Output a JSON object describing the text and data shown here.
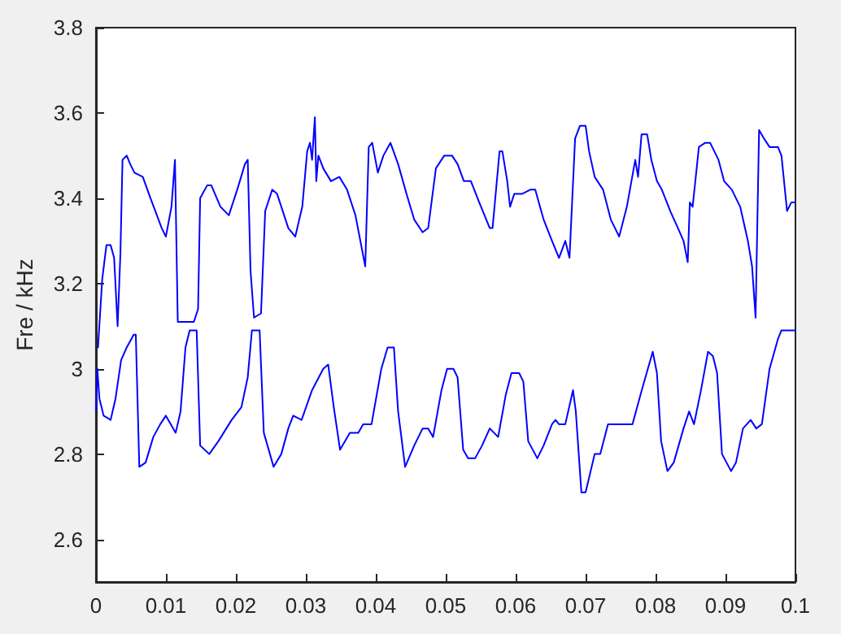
{
  "chart_data": {
    "type": "line",
    "ylabel": "Fre / kHz",
    "xlim": [
      0,
      0.1
    ],
    "xticks": [
      0,
      0.01,
      0.02,
      0.03,
      0.04,
      0.05,
      0.06,
      0.07,
      0.08,
      0.09,
      0.1
    ],
    "ylim": [
      2.5,
      3.8
    ],
    "yticks": [
      2.6,
      2.8,
      3,
      3.2,
      3.4,
      3.6,
      3.8
    ],
    "grid": false,
    "marker": "none",
    "line_style": "solid",
    "series": [
      {
        "color": "#0000ff",
        "x": [
          0.0003,
          0.0009,
          0.0015,
          0.0021,
          0.0026,
          0.0031,
          0.0035,
          0.0038,
          0.0044,
          0.0049,
          0.0055,
          0.0067,
          0.0078,
          0.0094,
          0.01,
          0.0108,
          0.0113,
          0.0117,
          0.014,
          0.0146,
          0.0149,
          0.0159,
          0.0165,
          0.0178,
          0.019,
          0.0202,
          0.0213,
          0.0217,
          0.0221,
          0.0226,
          0.0236,
          0.0242,
          0.0252,
          0.0259,
          0.0275,
          0.0285,
          0.0295,
          0.0302,
          0.0306,
          0.0309,
          0.0313,
          0.0315,
          0.0318,
          0.0325,
          0.0336,
          0.0348,
          0.0359,
          0.0371,
          0.0385,
          0.039,
          0.0395,
          0.0403,
          0.0411,
          0.0421,
          0.0432,
          0.0444,
          0.0455,
          0.0467,
          0.0475,
          0.0486,
          0.0498,
          0.0509,
          0.0517,
          0.0526,
          0.0536,
          0.0548,
          0.0563,
          0.0567,
          0.0577,
          0.0581,
          0.0588,
          0.0592,
          0.0598,
          0.0609,
          0.0621,
          0.0628,
          0.064,
          0.0652,
          0.0662,
          0.0671,
          0.0677,
          0.0685,
          0.0692,
          0.07,
          0.0705,
          0.0713,
          0.0725,
          0.0736,
          0.0748,
          0.0759,
          0.0771,
          0.0775,
          0.078,
          0.0788,
          0.0794,
          0.0802,
          0.0809,
          0.0821,
          0.0832,
          0.084,
          0.0846,
          0.0849,
          0.0853,
          0.0862,
          0.0871,
          0.0878,
          0.089,
          0.0898,
          0.0909,
          0.0921,
          0.0932,
          0.0938,
          0.0943,
          0.0948,
          0.0955,
          0.0963,
          0.0975,
          0.098,
          0.0988,
          0.0994,
          0.1
        ],
        "values": [
          3.05,
          3.21,
          3.29,
          3.29,
          3.26,
          3.1,
          3.27,
          3.49,
          3.5,
          3.48,
          3.46,
          3.45,
          3.4,
          3.33,
          3.31,
          3.38,
          3.49,
          3.11,
          3.11,
          3.14,
          3.4,
          3.43,
          3.43,
          3.38,
          3.36,
          3.42,
          3.48,
          3.49,
          3.23,
          3.12,
          3.13,
          3.37,
          3.42,
          3.41,
          3.33,
          3.31,
          3.38,
          3.51,
          3.53,
          3.49,
          3.59,
          3.44,
          3.5,
          3.47,
          3.44,
          3.45,
          3.42,
          3.36,
          3.24,
          3.52,
          3.53,
          3.46,
          3.5,
          3.53,
          3.48,
          3.41,
          3.35,
          3.32,
          3.33,
          3.47,
          3.5,
          3.5,
          3.48,
          3.44,
          3.44,
          3.39,
          3.33,
          3.33,
          3.51,
          3.51,
          3.44,
          3.38,
          3.41,
          3.41,
          3.42,
          3.42,
          3.35,
          3.3,
          3.26,
          3.3,
          3.26,
          3.54,
          3.57,
          3.57,
          3.51,
          3.45,
          3.42,
          3.35,
          3.31,
          3.38,
          3.49,
          3.45,
          3.55,
          3.55,
          3.49,
          3.44,
          3.42,
          3.37,
          3.33,
          3.3,
          3.25,
          3.39,
          3.38,
          3.52,
          3.53,
          3.53,
          3.49,
          3.44,
          3.42,
          3.38,
          3.3,
          3.24,
          3.12,
          3.56,
          3.54,
          3.52,
          3.52,
          3.5,
          3.37,
          3.39,
          3.39
        ]
      },
      {
        "color": "#0000ff",
        "x": [
          0,
          0.0002,
          0.0005,
          0.0011,
          0.0021,
          0.0028,
          0.0036,
          0.0044,
          0.0054,
          0.0057,
          0.0062,
          0.0071,
          0.0082,
          0.0092,
          0.01,
          0.0114,
          0.0121,
          0.0128,
          0.0134,
          0.0144,
          0.0149,
          0.0162,
          0.0175,
          0.0194,
          0.0208,
          0.0217,
          0.0223,
          0.0234,
          0.024,
          0.0254,
          0.0265,
          0.0275,
          0.0282,
          0.0294,
          0.0309,
          0.0325,
          0.0332,
          0.034,
          0.0349,
          0.0363,
          0.0375,
          0.0382,
          0.0394,
          0.0408,
          0.0417,
          0.0426,
          0.0432,
          0.0442,
          0.0455,
          0.0467,
          0.0475,
          0.0482,
          0.0494,
          0.0502,
          0.0511,
          0.0517,
          0.0525,
          0.0532,
          0.0542,
          0.0552,
          0.0563,
          0.0569,
          0.0575,
          0.0586,
          0.0594,
          0.0605,
          0.0611,
          0.0618,
          0.0631,
          0.064,
          0.0652,
          0.0657,
          0.0662,
          0.0671,
          0.0682,
          0.0686,
          0.0694,
          0.07,
          0.0713,
          0.0721,
          0.0732,
          0.0742,
          0.0752,
          0.0757,
          0.0767,
          0.0782,
          0.0796,
          0.0802,
          0.0808,
          0.0817,
          0.0826,
          0.084,
          0.0848,
          0.0855,
          0.0865,
          0.0875,
          0.0882,
          0.0888,
          0.0895,
          0.0908,
          0.0915,
          0.0925,
          0.0936,
          0.0944,
          0.0952,
          0.0963,
          0.0975,
          0.098,
          0.1
        ],
        "values": [
          2.9,
          3,
          2.93,
          2.89,
          2.88,
          2.93,
          3.02,
          3.05,
          3.08,
          3.08,
          2.77,
          2.78,
          2.84,
          2.87,
          2.89,
          2.85,
          2.9,
          3.05,
          3.09,
          3.09,
          2.82,
          2.8,
          2.83,
          2.88,
          2.91,
          2.98,
          3.09,
          3.09,
          2.85,
          2.77,
          2.8,
          2.86,
          2.89,
          2.88,
          2.95,
          3,
          3.01,
          2.91,
          2.81,
          2.85,
          2.85,
          2.87,
          2.87,
          3,
          3.05,
          3.05,
          2.9,
          2.77,
          2.82,
          2.86,
          2.86,
          2.84,
          2.95,
          3,
          3,
          2.98,
          2.81,
          2.79,
          2.79,
          2.82,
          2.86,
          2.85,
          2.84,
          2.94,
          2.99,
          2.99,
          2.97,
          2.83,
          2.79,
          2.82,
          2.87,
          2.88,
          2.87,
          2.87,
          2.95,
          2.9,
          2.71,
          2.71,
          2.8,
          2.8,
          2.87,
          2.87,
          2.87,
          2.87,
          2.87,
          2.96,
          3.04,
          2.99,
          2.83,
          2.76,
          2.78,
          2.86,
          2.9,
          2.87,
          2.95,
          3.04,
          3.03,
          2.99,
          2.8,
          2.76,
          2.78,
          2.86,
          2.88,
          2.86,
          2.87,
          3,
          3.07,
          3.09,
          3.09
        ]
      }
    ]
  }
}
